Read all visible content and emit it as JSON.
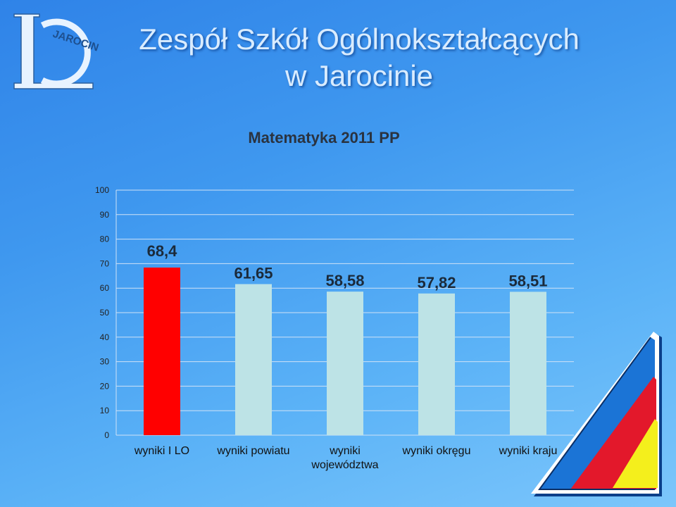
{
  "header": {
    "title_line1": "Zespół Szkół Ogólnokształcących",
    "title_line2": "w Jarocinie",
    "logo_text": "JAROCIN"
  },
  "colors": {
    "highlight_bar": "#ff0000",
    "other_bars": "#bde3e6",
    "title_text": "#d9ecff"
  },
  "chart_data": {
    "type": "bar",
    "title": "Matematyka 2011 PP",
    "categories": [
      "wyniki I LO",
      "wyniki powiatu",
      "wyniki województwa",
      "wyniki okręgu",
      "wyniki kraju"
    ],
    "category_lines": [
      [
        "wyniki I LO"
      ],
      [
        "wyniki powiatu"
      ],
      [
        "wyniki",
        "województwa"
      ],
      [
        "wyniki okręgu"
      ],
      [
        "wyniki kraju"
      ]
    ],
    "values": [
      68.4,
      61.65,
      58.58,
      57.82,
      58.51
    ],
    "data_labels": [
      "68,4",
      "61,65",
      "58,58",
      "57,82",
      "58,51"
    ],
    "bar_colors": [
      "#ff0000",
      "#bde3e6",
      "#bde3e6",
      "#bde3e6",
      "#bde3e6"
    ],
    "yticks": [
      0,
      10,
      20,
      30,
      40,
      50,
      60,
      70,
      80,
      90,
      100
    ],
    "ylim": [
      0,
      100
    ],
    "grid": true,
    "legend": "none"
  }
}
